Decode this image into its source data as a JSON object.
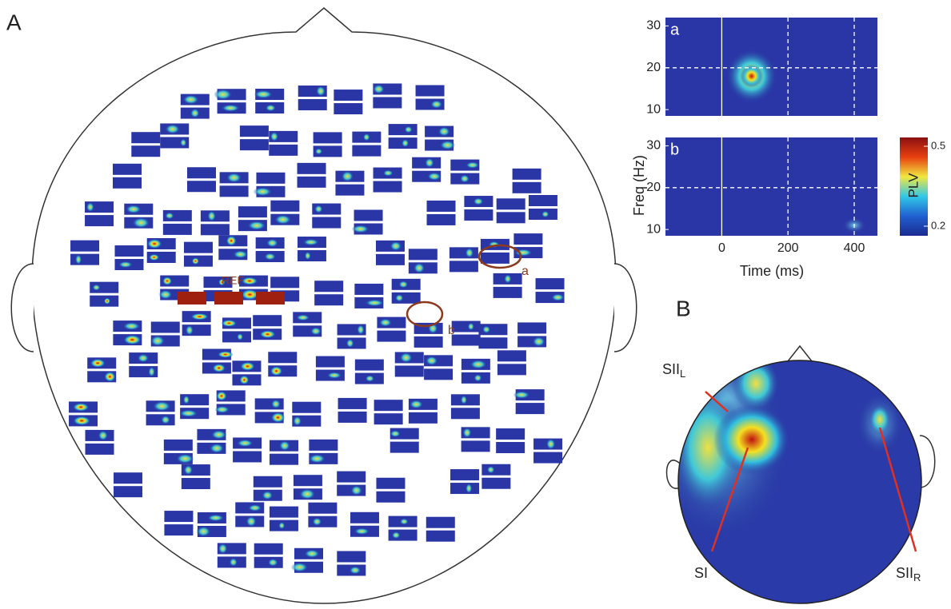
{
  "panel_a": {
    "label": "A",
    "ref_label": "REF",
    "marker_a": "a",
    "marker_b": "b"
  },
  "tf_plots": {
    "y_label": "Freq (Hz)",
    "x_label": "Time (ms)",
    "xlim": [
      -170,
      470
    ],
    "ylim": [
      8.5,
      32
    ],
    "xticks": [
      0,
      200,
      400
    ],
    "yticks": [
      10,
      20,
      30
    ],
    "plots": [
      {
        "label": "a"
      },
      {
        "label": "b"
      }
    ]
  },
  "colorbar": {
    "label": "PLV",
    "lim": [
      0.164,
      0.533
    ],
    "ticks": [
      0.2,
      0.5
    ]
  },
  "panel_b": {
    "label": "B",
    "annotations": [
      {
        "text": "SII",
        "sub": "L"
      },
      {
        "text": "SI"
      },
      {
        "text": "SII",
        "sub": "R"
      }
    ]
  }
}
